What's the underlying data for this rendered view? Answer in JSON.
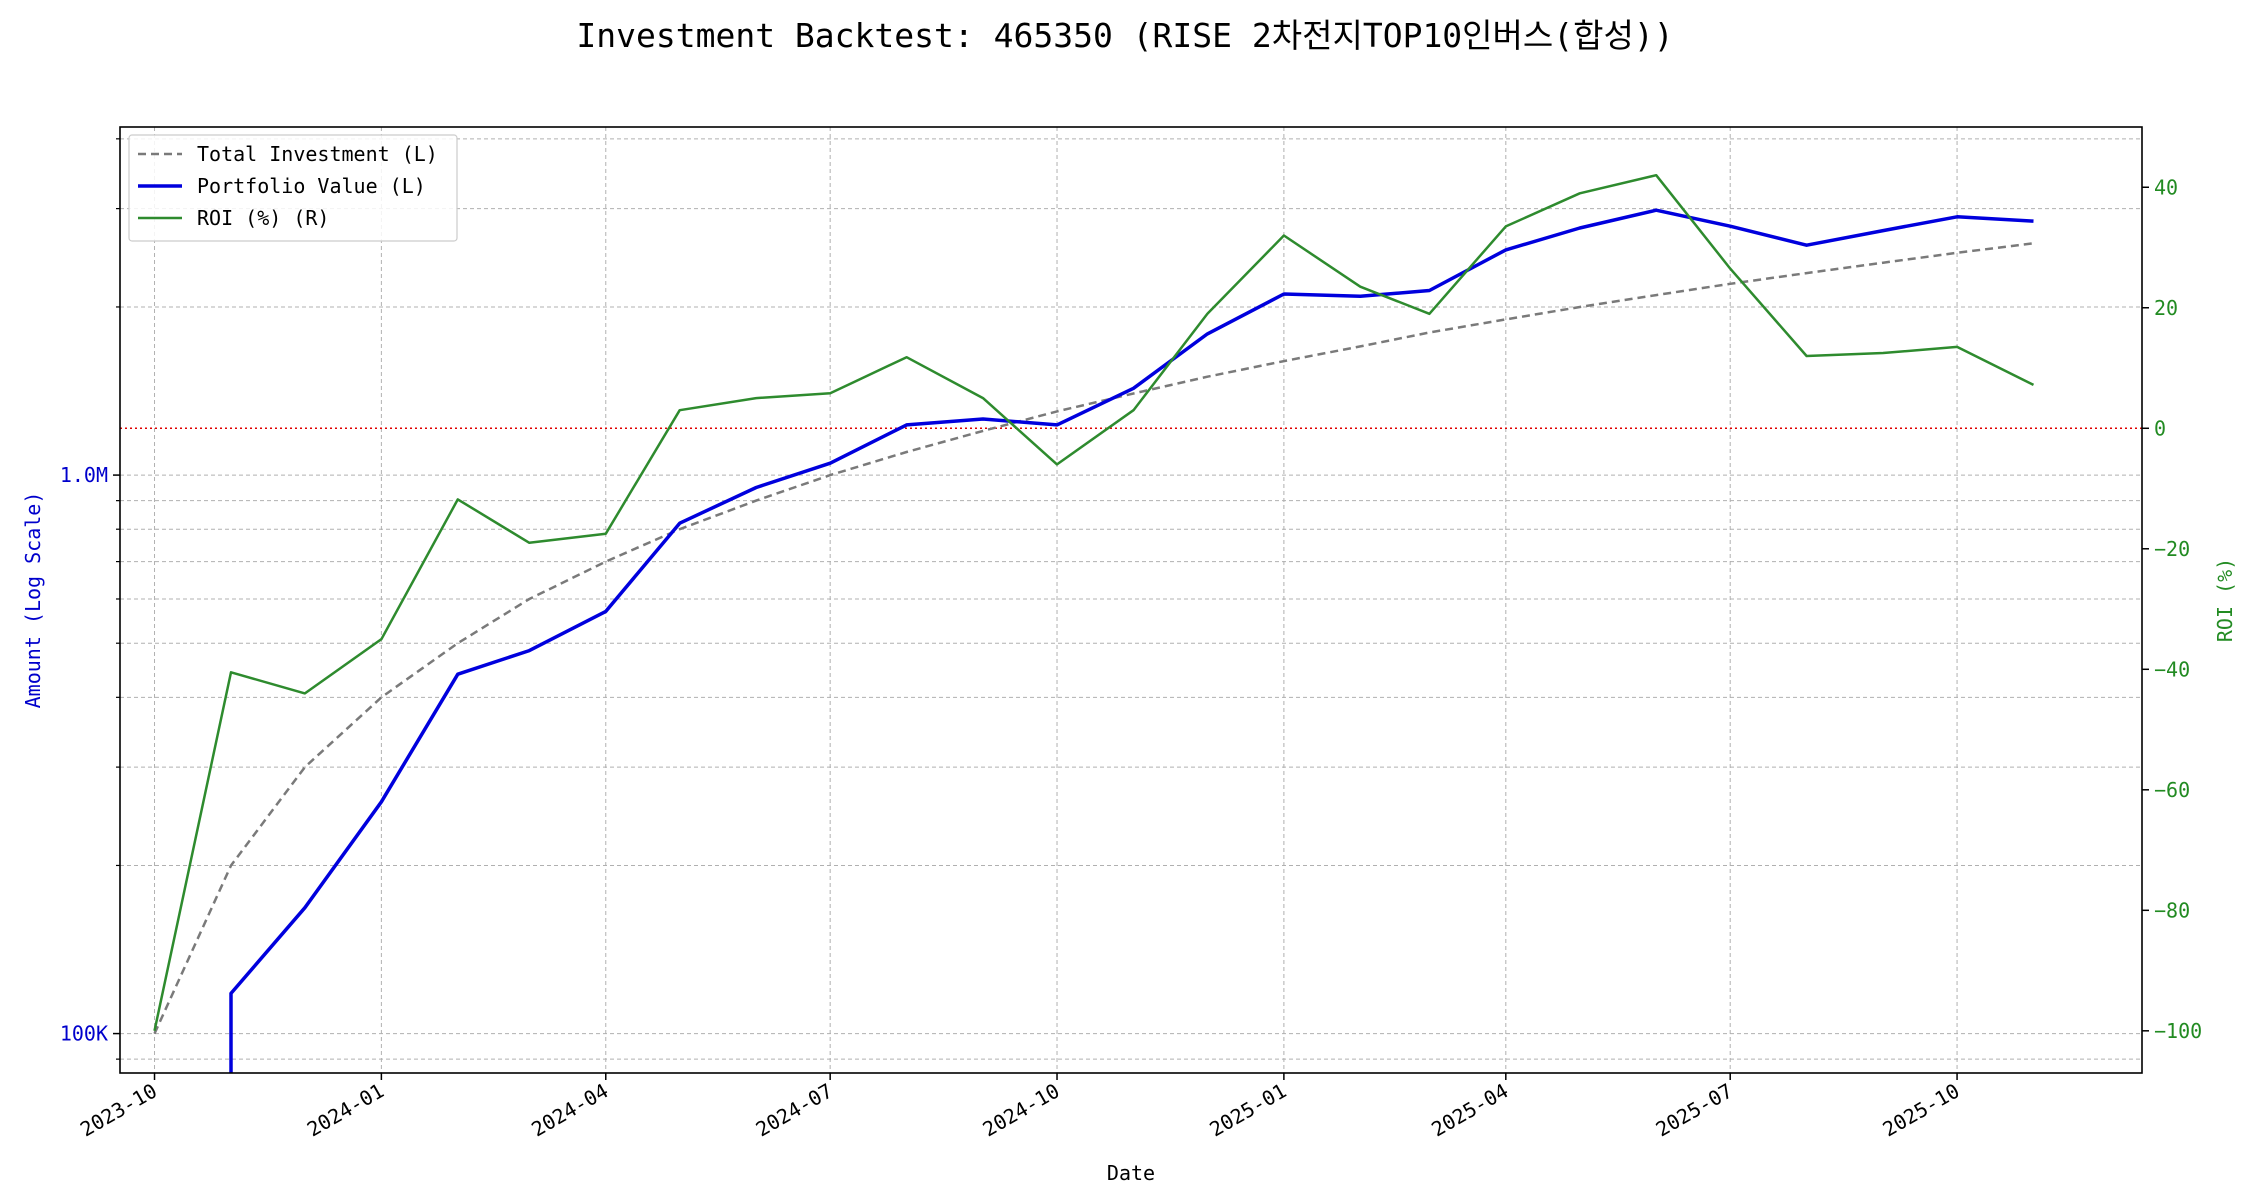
{
  "chart_data": {
    "type": "line",
    "title": "Investment Backtest: 465350 (RISE 2차전지TOP10인버스(합성))",
    "xlabel": "Date",
    "ylabel_left": "Amount (Log Scale)",
    "ylabel_right": "ROI (%)",
    "x_ticks": [
      "2023-10",
      "2024-01",
      "2024-04",
      "2024-07",
      "2024-10",
      "2025-01",
      "2025-04",
      "2025-07",
      "2025-10"
    ],
    "y_left_scale": "log",
    "y_left_ticks": [
      "100K",
      "1.0M"
    ],
    "y_left_range": [
      85000,
      4200000
    ],
    "y_right_ticks": [
      "−100",
      "−80",
      "−60",
      "−40",
      "−20",
      "0",
      "20",
      "40"
    ],
    "y_right_range": [
      -107,
      50
    ],
    "x_range": [
      "2023-09-17",
      "2025-12-15"
    ],
    "grid": true,
    "legend_position": "top-left",
    "reference_line": {
      "axis": "right",
      "value": 0,
      "style": "dotted",
      "color": "#e00000"
    },
    "colors": {
      "total_investment": "#7a7a7a",
      "portfolio_value": "#0000dd",
      "roi": "#2e8b2e",
      "left_axis": "#0000cc",
      "right_axis": "#228b22"
    },
    "x": [
      "2023-10-01",
      "2023-11-01",
      "2023-12-01",
      "2024-01-01",
      "2024-02-01",
      "2024-03-01",
      "2024-04-01",
      "2024-05-01",
      "2024-06-01",
      "2024-07-01",
      "2024-08-01",
      "2024-09-01",
      "2024-10-01",
      "2024-11-01",
      "2024-12-01",
      "2025-01-01",
      "2025-02-01",
      "2025-03-01",
      "2025-04-01",
      "2025-05-01",
      "2025-06-01",
      "2025-07-01",
      "2025-08-01",
      "2025-09-01",
      "2025-10-01",
      "2025-11-01"
    ],
    "series": [
      {
        "name": "Total Investment (L)",
        "axis": "left",
        "style": "dashed",
        "values": [
          100000,
          200000,
          300000,
          400000,
          500000,
          600000,
          700000,
          800000,
          900000,
          1000000,
          1100000,
          1200000,
          1300000,
          1400000,
          1500000,
          1600000,
          1700000,
          1800000,
          1900000,
          2000000,
          2100000,
          2200000,
          2300000,
          2400000,
          2500000,
          2600000
        ]
      },
      {
        "name": "Portfolio Value (L)",
        "axis": "left",
        "style": "solid",
        "values": [
          null,
          118000,
          168000,
          260000,
          440000,
          485000,
          570000,
          820000,
          950000,
          1050000,
          1230000,
          1260000,
          1230000,
          1430000,
          1790000,
          2110000,
          2090000,
          2140000,
          2530000,
          2770000,
          2980000,
          2790000,
          2580000,
          2740000,
          2900000,
          2850000
        ]
      },
      {
        "name": "ROI (%) (R)",
        "axis": "right",
        "style": "solid",
        "values": [
          -100,
          -40.5,
          -44,
          -35,
          -11.8,
          -19,
          -17.5,
          3,
          5,
          5.8,
          11.8,
          5,
          -6,
          3,
          19,
          32,
          23.5,
          19,
          33.5,
          39,
          42,
          26.5,
          12,
          12.5,
          13.5,
          7.2
        ]
      }
    ]
  }
}
